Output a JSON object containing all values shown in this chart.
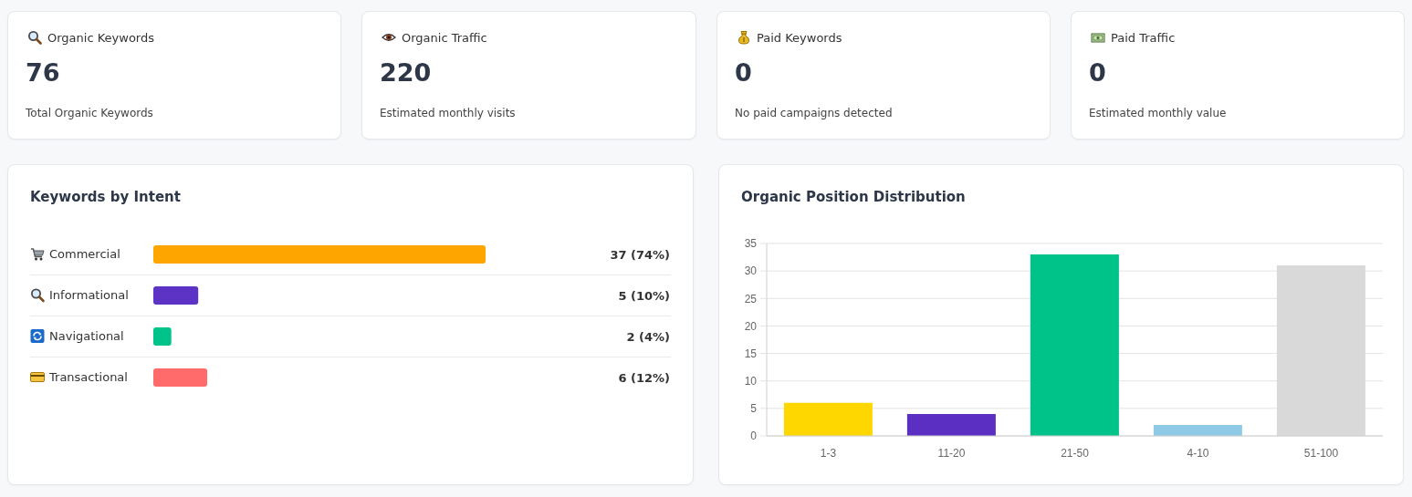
{
  "chart_data": [
    {
      "type": "other",
      "title": "Organic Keywords",
      "values": [
        76
      ],
      "data_labels": true,
      "annotations": [
        "Total Organic Keywords"
      ]
    },
    {
      "type": "other",
      "title": "Organic Traffic",
      "values": [
        220
      ],
      "data_labels": true,
      "annotations": [
        "Estimated monthly visits"
      ]
    },
    {
      "type": "other",
      "title": "Paid Keywords",
      "values": [
        0
      ],
      "data_labels": true,
      "annotations": [
        "No paid campaigns detected"
      ]
    },
    {
      "type": "other",
      "title": "Paid Traffic",
      "values": [
        0
      ],
      "data_labels": true,
      "annotations": [
        "Estimated monthly value"
      ]
    },
    {
      "type": "bar",
      "orientation": "horizontal",
      "title": "Keywords by Intent",
      "categories": [
        "Commercial",
        "Informational",
        "Navigational",
        "Transactional"
      ],
      "values": [
        37,
        5,
        2,
        6
      ],
      "colors": [
        "#ffa500",
        "#5c33c4",
        "#00c389",
        "#ff6b6b"
      ],
      "value_labels": [
        "37 (74%)",
        "5 (10%)",
        "2 (4%)",
        "6 (12%)"
      ],
      "tick_labels": "y"
    },
    {
      "type": "bar",
      "title": "Organic Position Distribution",
      "categories": [
        "1-3",
        "11-20",
        "21-50",
        "4-10",
        "51-100"
      ],
      "values": [
        6,
        4,
        33,
        2,
        31
      ],
      "colors": [
        "#ffd700",
        "#5a2fc2",
        "#00c389",
        "#8ecae6",
        "#d9d9d9"
      ],
      "ylim": [
        0,
        35
      ],
      "yticks": [
        0,
        5,
        10,
        15,
        20,
        25,
        30,
        35
      ],
      "grid": "y"
    }
  ]
}
